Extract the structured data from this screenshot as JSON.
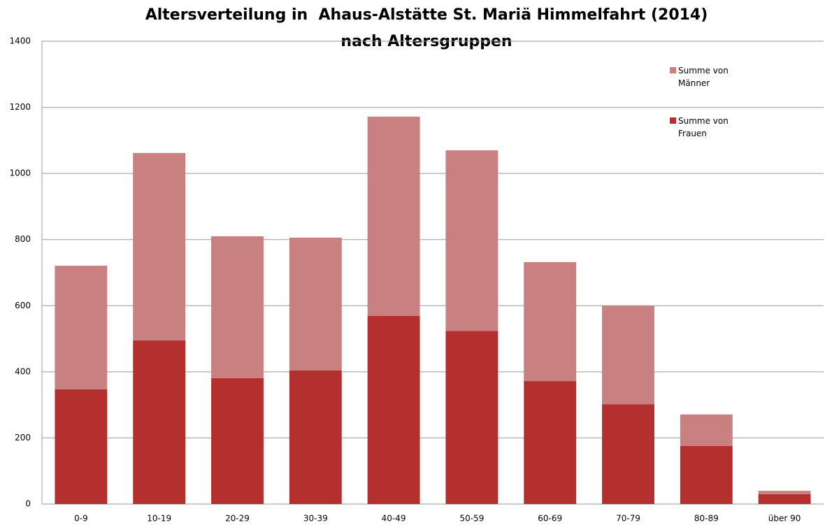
{
  "chart_data": {
    "type": "stacked_bar",
    "title": "Altersverteilung in  Ahaus-Alstätte St. Mariä Himmelfahrt (2014)",
    "subtitle": "nach Altersgruppen",
    "categories": [
      "0-9",
      "10-19",
      "20-29",
      "30-39",
      "40-49",
      "50-59",
      "60-69",
      "70-79",
      "80-89",
      "über 90"
    ],
    "series": [
      {
        "name": "Summe von Frauen",
        "color": "#b3302e",
        "values": [
          347,
          495,
          381,
          404,
          569,
          524,
          372,
          302,
          176,
          30
        ]
      },
      {
        "name": "Summe von Männer",
        "color": "#c98080",
        "values": [
          374,
          567,
          429,
          402,
          603,
          546,
          360,
          298,
          95,
          10
        ]
      }
    ],
    "ylim": [
      0,
      1400
    ],
    "yticks": [
      0,
      200,
      400,
      600,
      800,
      1000,
      1200,
      1400
    ],
    "grid": true,
    "legend": "right"
  }
}
